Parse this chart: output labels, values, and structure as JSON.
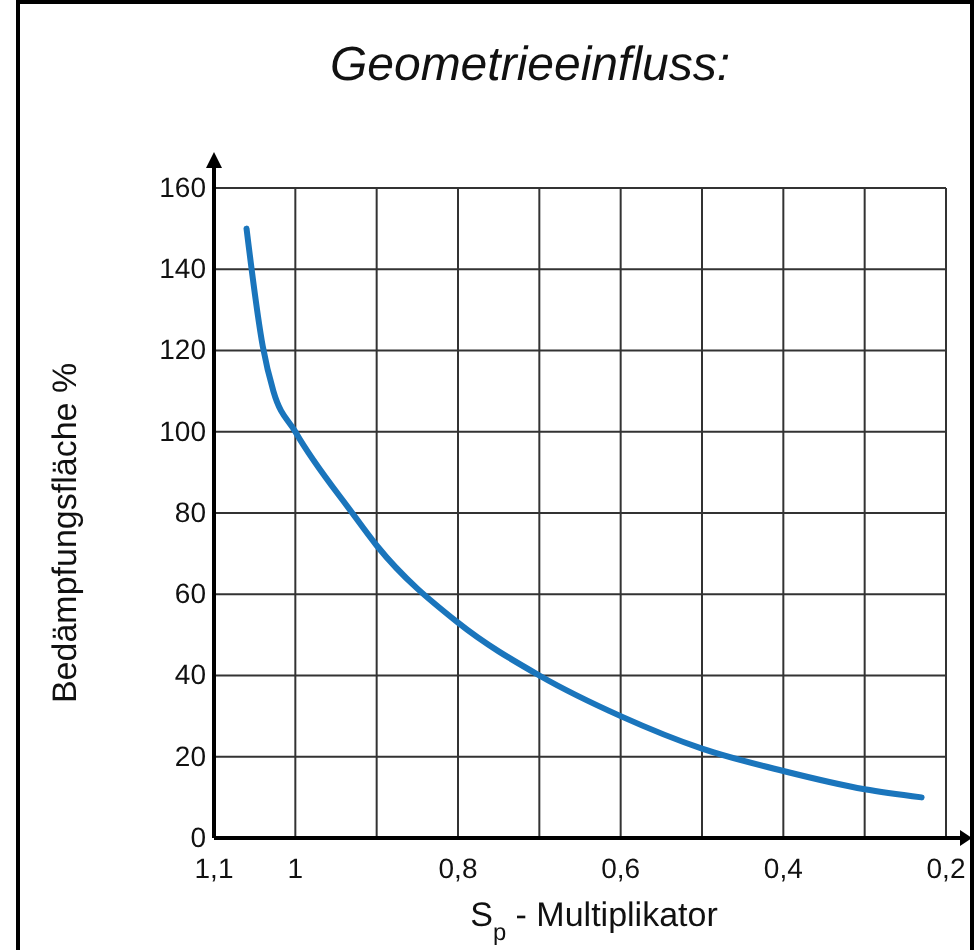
{
  "chart_data": {
    "type": "line",
    "title": "Geometrieeinfluss:",
    "xlabel": "S$_{p}$ - Multiplikator",
    "ylabel": "Bedämpfungsfläche %",
    "x": [
      1.06,
      1.04,
      1.027,
      1.0,
      0.93,
      0.9,
      0.8,
      0.7,
      0.6,
      0.5,
      0.4,
      0.3,
      0.23
    ],
    "series": [
      {
        "color": "#1a75bc",
        "values": [
          150,
          121,
          110,
          100,
          80,
          72,
          53,
          40,
          30,
          22,
          16.5,
          12,
          10
        ]
      }
    ],
    "xlim": [
      1.1,
      0.2
    ],
    "xticks": [
      {
        "value": 1.1,
        "label": "1,1"
      },
      1,
      {
        "value": 0.9,
        "label": null
      },
      {
        "value": 0.8,
        "label": "0,8"
      },
      {
        "value": 0.7,
        "label": null
      },
      {
        "value": 0.6,
        "label": "0,6"
      },
      {
        "value": 0.5,
        "label": null
      },
      {
        "value": 0.4,
        "label": "0,4"
      },
      {
        "value": 0.3,
        "label": null
      },
      {
        "value": 0.2,
        "label": "0,2"
      }
    ],
    "ylim": [
      0,
      160
    ],
    "yticks": [
      0,
      20,
      40,
      60,
      80,
      100,
      120,
      140,
      160
    ],
    "grid": true,
    "marker": "none",
    "line_style": "solid"
  }
}
